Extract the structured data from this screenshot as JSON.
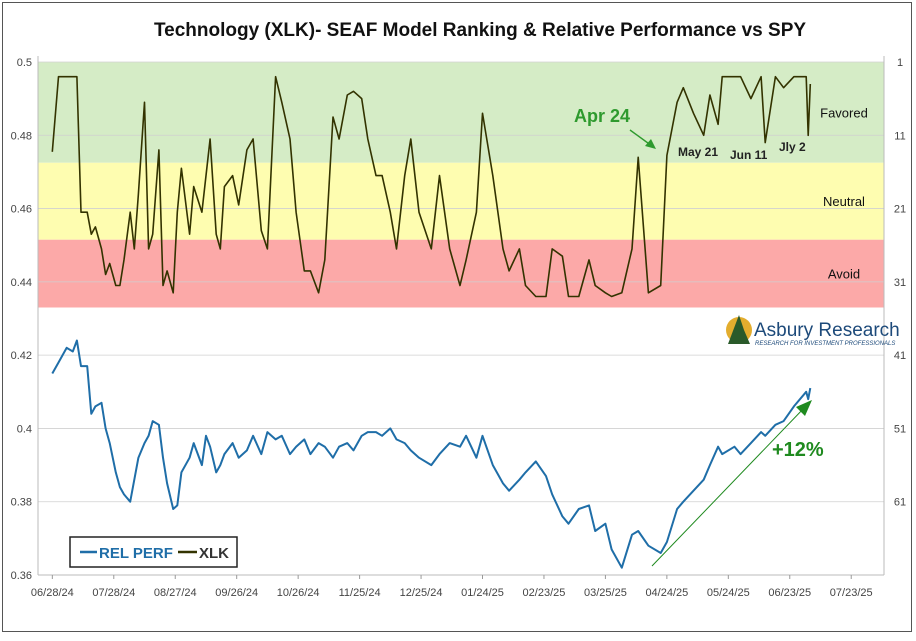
{
  "chart_data": {
    "type": "line",
    "title": "Technology (XLK)- SEAF Model Ranking & Relative Performance vs SPY",
    "left_axis": {
      "range": [
        0.36,
        0.5
      ],
      "ticks": [
        "0.5",
        "0.48",
        "0.46",
        "0.44",
        "0.42",
        "0.4",
        "0.38",
        "0.36"
      ],
      "tick_values": [
        0.5,
        0.48,
        0.46,
        0.44,
        0.42,
        0.4,
        0.38,
        0.36
      ]
    },
    "right_axis": {
      "range": [
        1,
        71
      ],
      "ticks": [
        "1",
        "11",
        "21",
        "31",
        "41",
        "51",
        "61"
      ],
      "tick_values": [
        1,
        11,
        21,
        31,
        41,
        51,
        61
      ]
    },
    "x_ticks": [
      "06/28/24",
      "07/28/24",
      "08/27/24",
      "09/26/24",
      "10/26/24",
      "11/25/24",
      "12/25/24",
      "01/24/25",
      "02/23/25",
      "03/25/25",
      "04/24/25",
      "05/24/25",
      "06/23/25",
      "07/23/25"
    ],
    "x_range": [
      "2024-06-21",
      "2025-08-08"
    ],
    "zones": [
      {
        "label": "Favored",
        "left_range": [
          0.4725,
          0.5
        ],
        "color": "#d5ecc6"
      },
      {
        "label": "Neutral",
        "left_range": [
          0.4515,
          0.4725
        ],
        "color": "#fefdb0"
      },
      {
        "label": "Avoid",
        "left_range": [
          0.433,
          0.4515
        ],
        "color": "#fca9a8"
      }
    ],
    "grid": true,
    "legend": {
      "placement": "bottom-left",
      "entries": [
        "REL PERF",
        "XLK"
      ]
    },
    "series": [
      {
        "name": "XLK",
        "color": "#333300",
        "x": [
          "2024-06-28",
          "2024-07-01",
          "2024-07-03",
          "2024-07-05",
          "2024-07-08",
          "2024-07-10",
          "2024-07-12",
          "2024-07-15",
          "2024-07-17",
          "2024-07-19",
          "2024-07-22",
          "2024-07-24",
          "2024-07-26",
          "2024-07-29",
          "2024-07-31",
          "2024-08-02",
          "2024-08-05",
          "2024-08-07",
          "2024-08-09",
          "2024-08-12",
          "2024-08-14",
          "2024-08-16",
          "2024-08-19",
          "2024-08-21",
          "2024-08-23",
          "2024-08-26",
          "2024-08-28",
          "2024-08-30",
          "2024-09-03",
          "2024-09-05",
          "2024-09-09",
          "2024-09-11",
          "2024-09-13",
          "2024-09-16",
          "2024-09-18",
          "2024-09-20",
          "2024-09-24",
          "2024-09-27",
          "2024-10-01",
          "2024-10-04",
          "2024-10-08",
          "2024-10-11",
          "2024-10-15",
          "2024-10-18",
          "2024-10-22",
          "2024-10-25",
          "2024-10-29",
          "2024-11-01",
          "2024-11-05",
          "2024-11-08",
          "2024-11-12",
          "2024-11-15",
          "2024-11-19",
          "2024-11-22",
          "2024-11-26",
          "2024-11-29",
          "2024-12-03",
          "2024-12-06",
          "2024-12-10",
          "2024-12-13",
          "2024-12-17",
          "2024-12-20",
          "2024-12-24",
          "2024-12-30",
          "2025-01-03",
          "2025-01-08",
          "2025-01-13",
          "2025-01-16",
          "2025-01-21",
          "2025-01-24",
          "2025-01-29",
          "2025-02-03",
          "2025-02-06",
          "2025-02-11",
          "2025-02-14",
          "2025-02-19",
          "2025-02-24",
          "2025-02-27",
          "2025-03-04",
          "2025-03-07",
          "2025-03-12",
          "2025-03-17",
          "2025-03-20",
          "2025-03-25",
          "2025-03-28",
          "2025-04-02",
          "2025-04-07",
          "2025-04-10",
          "2025-04-15",
          "2025-04-21",
          "2025-04-24",
          "2025-04-29",
          "2025-05-02",
          "2025-05-07",
          "2025-05-12",
          "2025-05-15",
          "2025-05-19",
          "2025-05-21",
          "2025-05-27",
          "2025-05-30",
          "2025-06-04",
          "2025-06-09",
          "2025-06-11",
          "2025-06-16",
          "2025-06-20",
          "2025-06-25",
          "2025-07-01",
          "2025-07-02",
          "2025-07-03"
        ],
        "y": [
          0.4755,
          0.496,
          0.496,
          0.496,
          0.496,
          0.496,
          0.459,
          0.459,
          0.453,
          0.455,
          0.449,
          0.442,
          0.445,
          0.439,
          0.439,
          0.446,
          0.459,
          0.449,
          0.464,
          0.489,
          0.449,
          0.453,
          0.476,
          0.439,
          0.443,
          0.437,
          0.459,
          0.471,
          0.453,
          0.466,
          0.459,
          0.469,
          0.479,
          0.453,
          0.449,
          0.466,
          0.469,
          0.461,
          0.476,
          0.479,
          0.454,
          0.449,
          0.496,
          0.489,
          0.479,
          0.459,
          0.443,
          0.443,
          0.437,
          0.446,
          0.485,
          0.479,
          0.491,
          0.492,
          0.49,
          0.479,
          0.469,
          0.469,
          0.459,
          0.449,
          0.469,
          0.479,
          0.459,
          0.449,
          0.469,
          0.449,
          0.439,
          0.446,
          0.459,
          0.486,
          0.469,
          0.449,
          0.443,
          0.449,
          0.439,
          0.436,
          0.436,
          0.449,
          0.447,
          0.436,
          0.436,
          0.446,
          0.439,
          0.437,
          0.436,
          0.437,
          0.449,
          0.474,
          0.437,
          0.439,
          0.4745,
          0.489,
          0.493,
          0.486,
          0.48,
          0.491,
          0.483,
          0.496,
          0.496,
          0.496,
          0.49,
          0.496,
          0.478,
          0.496,
          0.493,
          0.496,
          0.496,
          0.48,
          0.494
        ]
      },
      {
        "name": "REL PERF",
        "color": "#1f6ea8",
        "x": [
          "2024-06-28",
          "2024-07-01",
          "2024-07-03",
          "2024-07-05",
          "2024-07-08",
          "2024-07-10",
          "2024-07-12",
          "2024-07-15",
          "2024-07-17",
          "2024-07-19",
          "2024-07-22",
          "2024-07-24",
          "2024-07-26",
          "2024-07-29",
          "2024-07-31",
          "2024-08-02",
          "2024-08-05",
          "2024-08-07",
          "2024-08-09",
          "2024-08-12",
          "2024-08-14",
          "2024-08-16",
          "2024-08-19",
          "2024-08-21",
          "2024-08-23",
          "2024-08-26",
          "2024-08-28",
          "2024-08-30",
          "2024-09-03",
          "2024-09-05",
          "2024-09-09",
          "2024-09-11",
          "2024-09-13",
          "2024-09-16",
          "2024-09-18",
          "2024-09-20",
          "2024-09-24",
          "2024-09-27",
          "2024-10-01",
          "2024-10-04",
          "2024-10-08",
          "2024-10-11",
          "2024-10-15",
          "2024-10-18",
          "2024-10-22",
          "2024-10-25",
          "2024-10-29",
          "2024-11-01",
          "2024-11-05",
          "2024-11-08",
          "2024-11-12",
          "2024-11-15",
          "2024-11-19",
          "2024-11-22",
          "2024-11-26",
          "2024-11-29",
          "2024-12-03",
          "2024-12-06",
          "2024-12-10",
          "2024-12-13",
          "2024-12-17",
          "2024-12-20",
          "2024-12-24",
          "2024-12-30",
          "2025-01-03",
          "2025-01-08",
          "2025-01-13",
          "2025-01-16",
          "2025-01-21",
          "2025-01-24",
          "2025-01-29",
          "2025-02-03",
          "2025-02-06",
          "2025-02-11",
          "2025-02-14",
          "2025-02-19",
          "2025-02-24",
          "2025-02-27",
          "2025-03-04",
          "2025-03-07",
          "2025-03-12",
          "2025-03-17",
          "2025-03-20",
          "2025-03-25",
          "2025-03-28",
          "2025-04-02",
          "2025-04-07",
          "2025-04-10",
          "2025-04-15",
          "2025-04-21",
          "2025-04-24",
          "2025-04-29",
          "2025-05-02",
          "2025-05-07",
          "2025-05-12",
          "2025-05-15",
          "2025-05-19",
          "2025-05-21",
          "2025-05-27",
          "2025-05-30",
          "2025-06-04",
          "2025-06-09",
          "2025-06-11",
          "2025-06-16",
          "2025-06-20",
          "2025-06-25",
          "2025-07-01",
          "2025-07-02",
          "2025-07-03"
        ],
        "y": [
          0.415,
          0.418,
          0.42,
          0.422,
          0.421,
          0.424,
          0.417,
          0.417,
          0.404,
          0.406,
          0.407,
          0.4,
          0.396,
          0.388,
          0.384,
          0.382,
          0.38,
          0.386,
          0.392,
          0.396,
          0.398,
          0.402,
          0.401,
          0.392,
          0.385,
          0.378,
          0.379,
          0.388,
          0.392,
          0.396,
          0.39,
          0.398,
          0.395,
          0.388,
          0.39,
          0.393,
          0.396,
          0.392,
          0.394,
          0.398,
          0.393,
          0.399,
          0.397,
          0.398,
          0.393,
          0.395,
          0.397,
          0.393,
          0.396,
          0.395,
          0.392,
          0.395,
          0.396,
          0.394,
          0.398,
          0.399,
          0.399,
          0.398,
          0.4,
          0.397,
          0.396,
          0.394,
          0.392,
          0.39,
          0.393,
          0.396,
          0.395,
          0.398,
          0.392,
          0.398,
          0.39,
          0.385,
          0.383,
          0.386,
          0.388,
          0.391,
          0.387,
          0.382,
          0.376,
          0.374,
          0.378,
          0.379,
          0.372,
          0.374,
          0.367,
          0.362,
          0.371,
          0.372,
          0.368,
          0.366,
          0.369,
          0.378,
          0.38,
          0.383,
          0.386,
          0.39,
          0.395,
          0.393,
          0.395,
          0.393,
          0.396,
          0.399,
          0.398,
          0.401,
          0.402,
          0.406,
          0.41,
          0.408,
          0.411
        ]
      }
    ],
    "annotations": [
      {
        "text": "Apr 24",
        "color": "#2e9a2e"
      },
      {
        "text": "May 21",
        "color": "#222222"
      },
      {
        "text": "Jun 11",
        "color": "#222222"
      },
      {
        "text": "Jly 2",
        "color": "#222222"
      },
      {
        "text": "+12%",
        "color": "#1f8a1f"
      }
    ]
  },
  "watermark": {
    "brand": "Asbury Research",
    "tagline": "RESEARCH FOR INVESTMENT PROFESSIONALS"
  }
}
